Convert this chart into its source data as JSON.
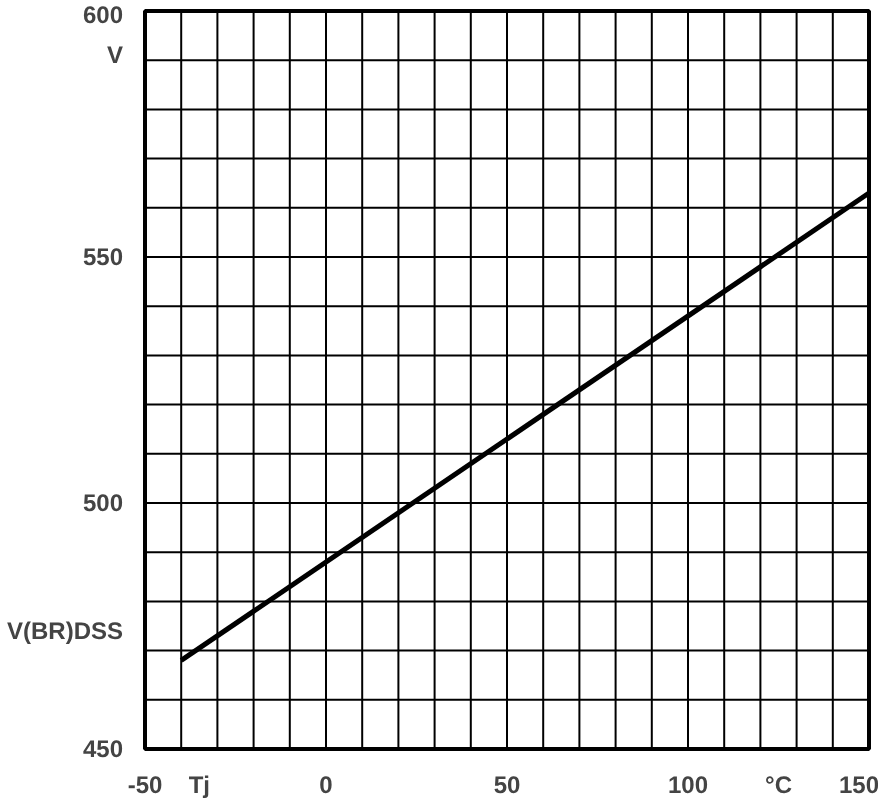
{
  "chart_data": {
    "type": "line",
    "x": [
      -40,
      150
    ],
    "series": [
      {
        "color": "#000000",
        "values": [
          468,
          563
        ]
      }
    ],
    "xlim": [
      -50,
      150
    ],
    "ylim": [
      450,
      600
    ],
    "xticks": [
      -50,
      {
        "value": -40,
        "label": null
      },
      {
        "value": -35,
        "label": "Tj"
      },
      {
        "value": -30,
        "label": null
      },
      {
        "value": -20,
        "label": null
      },
      {
        "value": -10,
        "label": null
      },
      0,
      {
        "value": 10,
        "label": null
      },
      {
        "value": 20,
        "label": null
      },
      {
        "value": 30,
        "label": null
      },
      {
        "value": 40,
        "label": null
      },
      50,
      {
        "value": 60,
        "label": null
      },
      {
        "value": 70,
        "label": null
      },
      {
        "value": 80,
        "label": null
      },
      {
        "value": 90,
        "label": null
      },
      100,
      {
        "value": 110,
        "label": null
      },
      {
        "value": 120,
        "label": null
      },
      {
        "value": 125,
        "label": "°C"
      },
      {
        "value": 130,
        "label": null
      },
      {
        "value": 140,
        "label": null
      },
      150
    ],
    "yticks": [
      450,
      {
        "value": 460,
        "label": null
      },
      {
        "value": 470,
        "label": null
      },
      {
        "value": 474,
        "label": "V(BR)DSS"
      },
      {
        "value": 480,
        "label": null
      },
      {
        "value": 490,
        "label": null
      },
      500,
      {
        "value": 510,
        "label": null
      },
      {
        "value": 520,
        "label": null
      },
      {
        "value": 530,
        "label": null
      },
      {
        "value": 540,
        "label": null
      },
      550,
      {
        "value": 560,
        "label": null
      },
      {
        "value": 570,
        "label": null
      },
      {
        "value": 580,
        "label": null
      },
      {
        "value": 590,
        "label": null
      },
      {
        "value": 591,
        "label": "V"
      },
      600
    ],
    "grid": true,
    "marker": "none",
    "line_style": "solid"
  }
}
